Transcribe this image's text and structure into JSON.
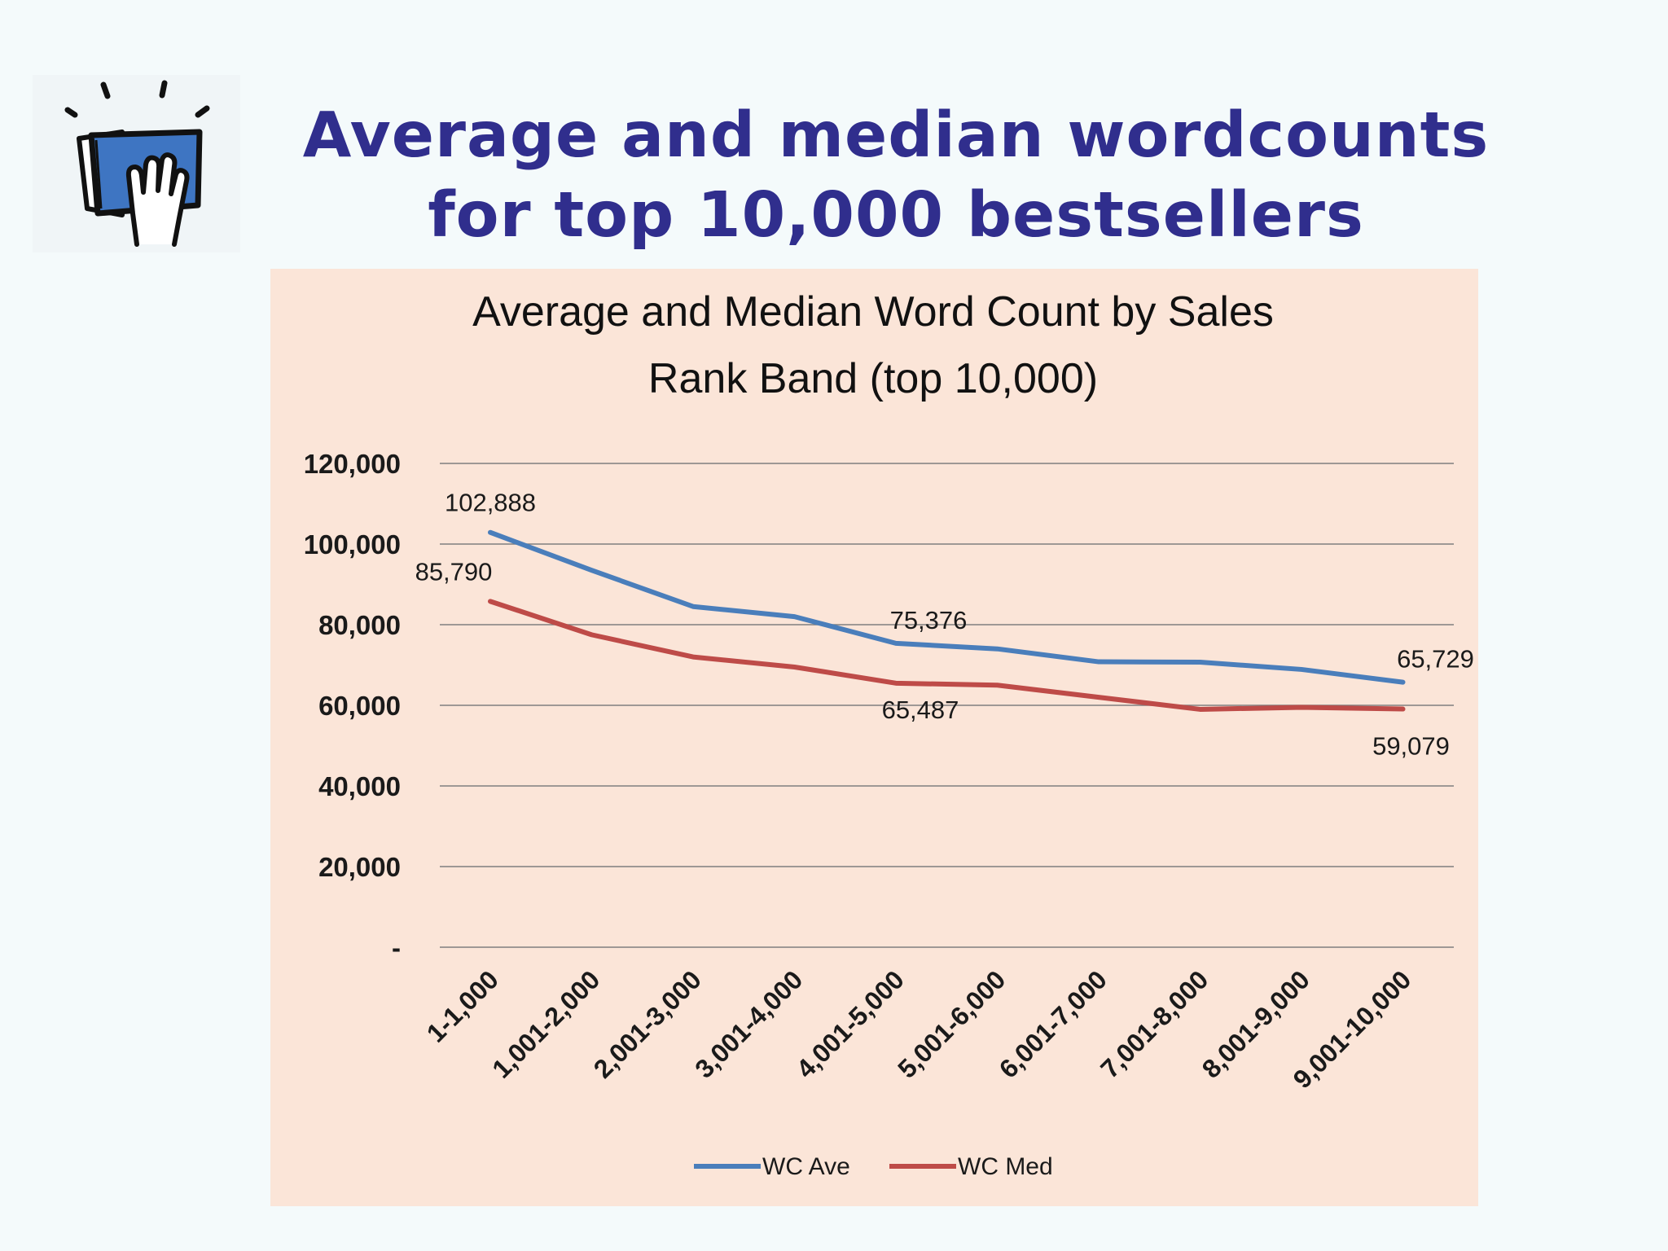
{
  "slide": {
    "title_line1": "Average and median wordcounts",
    "title_line2": "for top 10,000 bestsellers",
    "logo_icon": "hand-on-book-icon"
  },
  "colors": {
    "title": "#302e8d",
    "panel_bg": "#fbe5d8",
    "series_ave": "#4a7ebb",
    "series_med": "#be4b48",
    "grid": "#7f7f7f"
  },
  "chart_data": {
    "type": "line",
    "title_line1": "Average and Median Word Count by Sales",
    "title_line2": "Rank Band (top 10,000)",
    "categories": [
      "1-1,000",
      "1,001-2,000",
      "2,001-3,000",
      "3,001-4,000",
      "4,001-5,000",
      "5,001-6,000",
      "6,001-7,000",
      "7,001-8,000",
      "8,001-9,000",
      "9,001-10,000"
    ],
    "series": [
      {
        "name": "WC Ave",
        "color": "#4a7ebb",
        "values": [
          102888,
          93500,
          84500,
          82000,
          75376,
          74000,
          70800,
          70700,
          68900,
          65729
        ]
      },
      {
        "name": "WC Med",
        "color": "#be4b48",
        "values": [
          85790,
          77500,
          72000,
          69500,
          65487,
          65000,
          62000,
          59000,
          59500,
          59079
        ]
      }
    ],
    "data_labels": [
      {
        "series": 0,
        "index": 0,
        "text": "102,888",
        "pos": "above"
      },
      {
        "series": 1,
        "index": 0,
        "text": "85,790",
        "pos": "above-left"
      },
      {
        "series": 0,
        "index": 4,
        "text": "75,376",
        "pos": "above-right"
      },
      {
        "series": 1,
        "index": 4,
        "text": "65,487",
        "pos": "below-right"
      },
      {
        "series": 0,
        "index": 9,
        "text": "65,729",
        "pos": "above-right"
      },
      {
        "series": 1,
        "index": 9,
        "text": "59,079",
        "pos": "below"
      }
    ],
    "yticks": [
      0,
      20000,
      40000,
      60000,
      80000,
      100000,
      120000
    ],
    "ytick_labels": [
      "-",
      "20,000",
      "40,000",
      "60,000",
      "80,000",
      "100,000",
      "120,000"
    ],
    "ylim": [
      0,
      120000
    ],
    "grid": true,
    "legend_position": "bottom"
  }
}
